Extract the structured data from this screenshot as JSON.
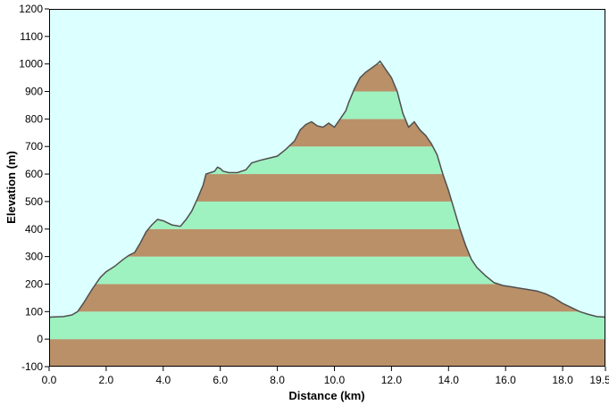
{
  "chart_data": {
    "type": "area",
    "xlabel": "Distance  (km)",
    "ylabel": "Elevation (m)",
    "xlim": [
      0,
      19.5
    ],
    "ylim": [
      -100,
      1200
    ],
    "x_ticks": [
      "0.0",
      "2.0",
      "4.0",
      "6.0",
      "8.0",
      "10.0",
      "12.0",
      "14.0",
      "16.0",
      "18.0",
      "19.5"
    ],
    "x_tick_values": [
      0,
      2,
      4,
      6,
      8,
      10,
      12,
      14,
      16,
      18,
      19.5
    ],
    "y_ticks": [
      "-100",
      "0",
      "100",
      "200",
      "300",
      "400",
      "500",
      "600",
      "700",
      "800",
      "900",
      "1000",
      "1100",
      "1200"
    ],
    "y_tick_values": [
      -100,
      0,
      100,
      200,
      300,
      400,
      500,
      600,
      700,
      800,
      900,
      1000,
      1100,
      1200
    ],
    "grid": false,
    "band_height": 100,
    "colors": {
      "sky": "#dcffff",
      "band_brown": "#b99068",
      "band_green": "#9ef2c0",
      "profile_line": "#505050",
      "axis": "#000000"
    },
    "series": [
      {
        "x": [
          0,
          0.5,
          0.8,
          1.0,
          1.2,
          1.5,
          1.8,
          2.0,
          2.3,
          2.6,
          2.8,
          3.0,
          3.2,
          3.4,
          3.6,
          3.8,
          4.0,
          4.3,
          4.6,
          4.8,
          5.0,
          5.2,
          5.4,
          5.5,
          5.8,
          5.9,
          6.0,
          6.1,
          6.3,
          6.6,
          6.9,
          7.1,
          7.4,
          7.6,
          8.0,
          8.3,
          8.6,
          8.8,
          9.0,
          9.2,
          9.4,
          9.6,
          9.8,
          10.0,
          10.2,
          10.4,
          10.5,
          10.7,
          10.9,
          11.1,
          11.3,
          11.5,
          11.6,
          11.7,
          11.8,
          12.0,
          12.2,
          12.4,
          12.6,
          12.8,
          13.0,
          13.2,
          13.4,
          13.6,
          13.8,
          14.0,
          14.2,
          14.4,
          14.6,
          14.8,
          15.0,
          15.3,
          15.6,
          15.9,
          16.2,
          16.5,
          16.8,
          17.1,
          17.4,
          17.7,
          18.0,
          18.3,
          18.6,
          18.9,
          19.2,
          19.5
        ],
        "values": [
          80,
          82,
          88,
          100,
          130,
          180,
          225,
          245,
          265,
          290,
          305,
          315,
          350,
          390,
          415,
          435,
          430,
          415,
          410,
          435,
          465,
          510,
          560,
          600,
          610,
          625,
          620,
          610,
          605,
          605,
          615,
          640,
          650,
          655,
          665,
          690,
          720,
          760,
          780,
          790,
          775,
          770,
          785,
          770,
          800,
          830,
          860,
          910,
          950,
          970,
          985,
          1000,
          1010,
          995,
          980,
          950,
          900,
          820,
          770,
          790,
          760,
          740,
          710,
          670,
          600,
          540,
          470,
          400,
          340,
          290,
          260,
          230,
          205,
          195,
          190,
          185,
          180,
          175,
          165,
          150,
          130,
          115,
          100,
          90,
          82,
          80
        ]
      }
    ]
  }
}
